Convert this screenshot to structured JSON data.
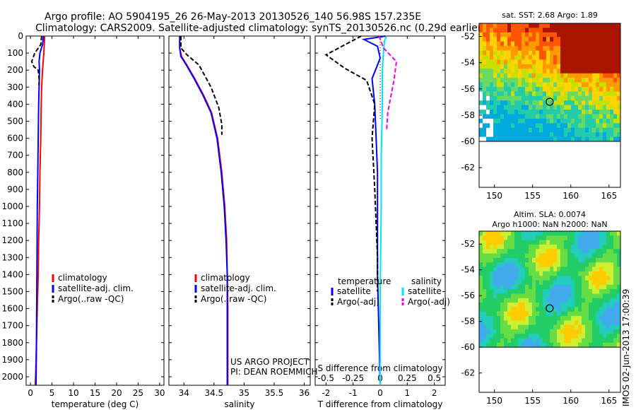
{
  "header": {
    "title_line1": "Argo profile: AO 5904195_26 26-May-2013 20130526_140 56.98S 157.235E",
    "title_line2": "Climatology: CARS2009. Satellite-adjusted climatology: synTS_20130526.nc (0.29d earlier)"
  },
  "credits": {
    "project": "US ARGO PROJECT",
    "pi": "PI: DEAN ROEMMICH"
  },
  "watermark": "IMOS 02-Jun-2013 17:00:39",
  "colors": {
    "climatology": "#ff0000",
    "satellite": "#0000ff",
    "argo": "#000000",
    "sat_salinity": "#00e5ee",
    "argo_salinity": "#ee00ee"
  },
  "chart_data": [
    {
      "type": "line",
      "title": "",
      "xlabel": "temperature (deg C)",
      "ylabel": "",
      "xlim": [
        -1,
        31
      ],
      "ylim": [
        2050,
        0
      ],
      "xticks": [
        0,
        5,
        10,
        15,
        20,
        25,
        30
      ],
      "yticks": [
        0,
        100,
        200,
        300,
        400,
        500,
        600,
        700,
        800,
        900,
        1000,
        1100,
        1200,
        1300,
        1400,
        1500,
        1600,
        1700,
        1800,
        1900,
        2000
      ],
      "legend": [
        "climatology",
        "satellite-adj. clim.",
        "Argo(..raw -QC)"
      ],
      "legend_position": "lower-right",
      "series": [
        {
          "name": "climatology",
          "color": "#ff0000",
          "dash": "",
          "x": [
            3.3,
            3.2,
            3.1,
            2.8,
            2.6,
            2.5,
            2.4,
            2.2,
            2.1,
            1.9,
            1.8,
            1.6,
            1.4,
            1.2,
            1.1
          ],
          "y": [
            0,
            50,
            100,
            200,
            300,
            400,
            600,
            800,
            1000,
            1200,
            1400,
            1600,
            1800,
            2000,
            2050
          ]
        },
        {
          "name": "satellite-adj. clim.",
          "color": "#0000ff",
          "dash": "",
          "x": [
            3.0,
            2.8,
            2.2,
            2.0,
            2.1,
            2.0,
            1.9,
            1.8,
            1.7,
            1.6,
            1.5,
            1.4,
            1.3
          ],
          "y": [
            0,
            50,
            100,
            150,
            200,
            300,
            400,
            600,
            800,
            1000,
            1400,
            1800,
            2050
          ]
        },
        {
          "name": "Argo(..raw -QC)",
          "color": "#000000",
          "dash": "6,3",
          "x": [
            2.6,
            2.4,
            1.0,
            0.3,
            0.8,
            1.8,
            2.0,
            2.0
          ],
          "y": [
            0,
            50,
            100,
            150,
            180,
            200,
            250,
            290
          ]
        }
      ]
    },
    {
      "type": "line",
      "title": "",
      "xlabel": "salinity",
      "ylabel": "",
      "xlim": [
        33.75,
        36.1
      ],
      "ylim": [
        2050,
        0
      ],
      "xticks": [
        34,
        34.5,
        35,
        35.5,
        36
      ],
      "xticklabels": [
        "34",
        "34.5",
        "35",
        "35.5",
        "36"
      ],
      "legend": [
        "climatology",
        "satellite-adj. clim.",
        "Argo(..raw -QC)"
      ],
      "legend_position": "lower-right",
      "series": [
        {
          "name": "climatology",
          "color": "#ff0000",
          "dash": "",
          "x": [
            33.93,
            33.93,
            33.96,
            34.05,
            34.18,
            34.33,
            34.46,
            34.56,
            34.63,
            34.68,
            34.71,
            34.72,
            34.73,
            34.73,
            34.73
          ],
          "y": [
            0,
            70,
            120,
            170,
            250,
            350,
            450,
            600,
            800,
            1000,
            1200,
            1400,
            1600,
            1800,
            2050
          ]
        },
        {
          "name": "satellite-adj. clim.",
          "color": "#0000ff",
          "dash": "",
          "x": [
            33.93,
            33.93,
            33.95,
            34.04,
            34.17,
            34.32,
            34.45,
            34.55,
            34.62,
            34.67,
            34.7,
            34.72,
            34.72,
            34.72,
            34.72
          ],
          "y": [
            0,
            70,
            120,
            170,
            250,
            350,
            450,
            600,
            800,
            1000,
            1200,
            1400,
            1600,
            1800,
            2050
          ]
        },
        {
          "name": "Argo(..raw -QC)",
          "color": "#000000",
          "dash": "6,3",
          "x": [
            33.95,
            33.95,
            34.05,
            34.25,
            34.45,
            34.58,
            34.63,
            34.63
          ],
          "y": [
            0,
            70,
            110,
            170,
            300,
            420,
            520,
            580
          ]
        }
      ]
    },
    {
      "type": "line",
      "title": "",
      "xlabel": "T difference from climatology",
      "xlabel_top": "S difference from climatology",
      "ylabel": "",
      "xlim": [
        -2.4,
        2.4
      ],
      "ylim": [
        2050,
        0
      ],
      "xticks_bottom": [
        -2,
        -1,
        0,
        1,
        2
      ],
      "xticks_top": [
        -0.5,
        -0.25,
        0,
        0.25,
        0.5
      ],
      "legend": [
        "temperature",
        "satellite",
        "Argo(-adj)",
        "salinity",
        "satellite",
        "Argo(-adj)"
      ],
      "legend_position": "lower-center",
      "series": [
        {
          "name": "satellite",
          "group": "temperature",
          "color": "#0000ff",
          "dash": "",
          "x": [
            0.2,
            -0.6,
            -0.1,
            0.0,
            -0.3,
            -0.2,
            -0.1,
            -0.1,
            0.0
          ],
          "y": [
            0,
            20,
            60,
            130,
            250,
            400,
            800,
            1400,
            2050
          ]
        },
        {
          "name": "Argo(-adj)",
          "group": "temperature",
          "color": "#000000",
          "dash": "6,3",
          "x": [
            -0.7,
            -2.0,
            -1.3,
            -0.5,
            -0.2,
            -0.3,
            -0.2,
            -0.1,
            -0.1
          ],
          "y": [
            0,
            110,
            190,
            260,
            400,
            600,
            900,
            1300,
            1500
          ]
        },
        {
          "name": "satellite",
          "group": "salinity",
          "color": "#00e5ee",
          "dash": "",
          "x": [
            0.06,
            0.04,
            0.03,
            0.02,
            0.02,
            0.01,
            0.01,
            0.0,
            0.0
          ],
          "y": [
            0,
            30,
            100,
            200,
            400,
            700,
            1000,
            1500,
            2050
          ]
        },
        {
          "name": "Argo(-adj)",
          "group": "salinity",
          "color": "#ee00ee",
          "dash": "6,3",
          "x": [
            -0.01,
            0.03,
            0.15,
            0.13,
            0.1,
            0.07,
            0.06
          ],
          "y": [
            0,
            70,
            150,
            250,
            350,
            450,
            550
          ]
        }
      ]
    },
    {
      "type": "heatmap",
      "title": "sat. SST: 2.68 Argo: 1.89",
      "xlabel": "",
      "ylabel": "",
      "xlim": [
        148,
        166.5
      ],
      "ylim": [
        -63.5,
        -51
      ],
      "xticks": [
        150,
        155,
        160,
        165
      ],
      "yticks": [
        -52,
        -54,
        -56,
        -58,
        -60,
        -62
      ],
      "marker": {
        "lon": 157.235,
        "lat": -56.98
      }
    },
    {
      "type": "heatmap",
      "title": "Altim. SLA: 0.0074",
      "subtitle": "Argo h1000: NaN h2000: NaN",
      "xlabel": "",
      "ylabel": "",
      "xlim": [
        148,
        166.5
      ],
      "ylim": [
        -63.5,
        -51
      ],
      "xticks": [
        150,
        155,
        160,
        165
      ],
      "yticks": [
        -52,
        -54,
        -56,
        -58,
        -60,
        -62
      ],
      "marker": {
        "lon": 157.235,
        "lat": -56.98
      }
    }
  ]
}
